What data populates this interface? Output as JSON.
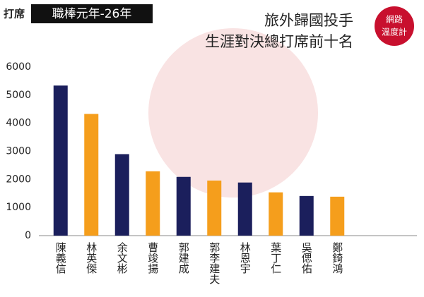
{
  "chart_data": {
    "type": "bar",
    "ylabel": "打席",
    "subtitle": "職棒元年-26年",
    "title_lines": [
      "旅外歸國投手",
      "生涯對決總打席前十名"
    ],
    "logo": [
      "網路",
      "溫度計"
    ],
    "categories": [
      "陳義信",
      "林英傑",
      "余文彬",
      "曹竣揚",
      "郭建成",
      "郭李建夫",
      "林恩宇",
      "葉丁仁",
      "吳偲佑",
      "鄭錡鴻"
    ],
    "values": [
      5340,
      4330,
      2900,
      2290,
      2090,
      1960,
      1890,
      1540,
      1410,
      1385
    ],
    "colors": [
      "#1b1f5c",
      "#f59e1c",
      "#1b1f5c",
      "#f59e1c",
      "#1b1f5c",
      "#f59e1c",
      "#1b1f5c",
      "#f59e1c",
      "#1b1f5c",
      "#f59e1c"
    ],
    "ylim": [
      0,
      6000
    ],
    "yticks": [
      0,
      1000,
      2000,
      3000,
      4000,
      5000,
      6000
    ],
    "grid": false
  }
}
